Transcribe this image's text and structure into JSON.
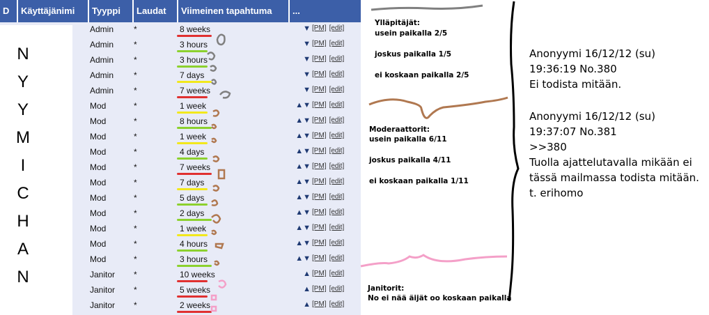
{
  "table": {
    "columns": [
      "D",
      "Käyttäjänimi",
      "Tyyppi",
      "Laudat",
      "Viimeinen tapahtuma",
      "..."
    ],
    "rows": [
      {
        "type": "Admin",
        "boards": "*",
        "event": "8 weeks",
        "arrows": "▼",
        "pm": "[PM]",
        "edit": "[edit]",
        "underline": "#e03030"
      },
      {
        "type": "Admin",
        "boards": "*",
        "event": "3 hours",
        "arrows": "▼",
        "pm": "[PM]",
        "edit": "[edit]",
        "underline": "#8cd12e"
      },
      {
        "type": "Admin",
        "boards": "*",
        "event": "3 hours",
        "arrows": "▼",
        "pm": "[PM]",
        "edit": "[edit]",
        "underline": "#8cd12e"
      },
      {
        "type": "Admin",
        "boards": "*",
        "event": "7 days",
        "arrows": "▼",
        "pm": "[PM]",
        "edit": "[edit]",
        "underline": "#f2e81c"
      },
      {
        "type": "Admin",
        "boards": "*",
        "event": "7 weeks",
        "arrows": "▼",
        "pm": "[PM]",
        "edit": "[edit]",
        "underline": "#e03030"
      },
      {
        "type": "Mod",
        "boards": "*",
        "event": "1 week",
        "arrows": "▲▼",
        "pm": "[PM]",
        "edit": "[edit]",
        "underline": "#f2e81c"
      },
      {
        "type": "Mod",
        "boards": "*",
        "event": "8 hours",
        "arrows": "▲▼",
        "pm": "[PM]",
        "edit": "[edit]",
        "underline": "#8cd12e"
      },
      {
        "type": "Mod",
        "boards": "*",
        "event": "1 week",
        "arrows": "▲▼",
        "pm": "[PM]",
        "edit": "[edit]",
        "underline": "#f2e81c"
      },
      {
        "type": "Mod",
        "boards": "*",
        "event": "4 days",
        "arrows": "▲▼",
        "pm": "[PM]",
        "edit": "[edit]",
        "underline": "#8cd12e"
      },
      {
        "type": "Mod",
        "boards": "*",
        "event": "7 weeks",
        "arrows": "▲▼",
        "pm": "[PM]",
        "edit": "[edit]",
        "underline": "#e03030"
      },
      {
        "type": "Mod",
        "boards": "*",
        "event": "7 days",
        "arrows": "▲▼",
        "pm": "[PM]",
        "edit": "[edit]",
        "underline": "#f2e81c"
      },
      {
        "type": "Mod",
        "boards": "*",
        "event": "5 days",
        "arrows": "▲▼",
        "pm": "[PM]",
        "edit": "[edit]",
        "underline": "#8cd12e"
      },
      {
        "type": "Mod",
        "boards": "*",
        "event": "2 days",
        "arrows": "▲▼",
        "pm": "[PM]",
        "edit": "[edit]",
        "underline": "#8cd12e"
      },
      {
        "type": "Mod",
        "boards": "*",
        "event": "1 week",
        "arrows": "▲▼",
        "pm": "[PM]",
        "edit": "[edit]",
        "underline": "#f2e81c"
      },
      {
        "type": "Mod",
        "boards": "*",
        "event": "4 hours",
        "arrows": "▲▼",
        "pm": "[PM]",
        "edit": "[edit]",
        "underline": "#8cd12e"
      },
      {
        "type": "Mod",
        "boards": "*",
        "event": "3 hours",
        "arrows": "▲▼",
        "pm": "[PM]",
        "edit": "[edit]",
        "underline": "#8cd12e"
      },
      {
        "type": "Janitor",
        "boards": "*",
        "event": "10 weeks",
        "arrows": "▲",
        "pm": "[PM]",
        "edit": "[edit]",
        "underline": "#e03030"
      },
      {
        "type": "Janitor",
        "boards": "*",
        "event": "5 weeks",
        "arrows": "▲",
        "pm": "[PM]",
        "edit": "[edit]",
        "underline": "#e03030"
      },
      {
        "type": "Janitor",
        "boards": "*",
        "event": "2 weeks",
        "arrows": "▲",
        "pm": "[PM]",
        "edit": "[edit]",
        "underline": "#e03030"
      }
    ]
  },
  "redacted_letters": [
    "N",
    "Y",
    "Y",
    "M",
    "I",
    "C",
    "H",
    "A",
    "N"
  ],
  "annotations": {
    "admins": {
      "title": "Ylläpitäjät:",
      "often": "usein paikalla 2/5",
      "sometimes": "joskus paikalla 1/5",
      "never": "ei koskaan paikalla 2/5"
    },
    "mods": {
      "title": "Moderaattorit:",
      "often": "usein paikalla 6/11",
      "sometimes": "joskus paikalla 4/11",
      "never": "ei koskaan paikalla 1/11"
    },
    "janitors": {
      "title": "Janitorit:",
      "note": "No ei nää äijät oo koskaan paikalla"
    }
  },
  "post1": {
    "header": "Anonyymi 16/12/12 (su)",
    "time": "19:36:19 No.380",
    "body": "Ei todista mitään."
  },
  "post2": {
    "header": "Anonyymi 16/12/12 (su)",
    "time": "19:37:07 No.381",
    "quote": ">>380",
    "line1": "Tuolla ajattelutavalla mikään ei",
    "line2": "tässä mailmassa todista mitään.",
    "sign": "t. erihomo"
  },
  "colors": {
    "header_bg": "#3c5fa8",
    "row_bg": "#e8ebf7",
    "red_mark": "#e03030",
    "green_mark": "#8cd12e",
    "yellow_mark": "#f2e81c",
    "grey_scribble": "#808080",
    "brown_scribble": "#b07850",
    "pink_scribble": "#f4a0c8"
  }
}
